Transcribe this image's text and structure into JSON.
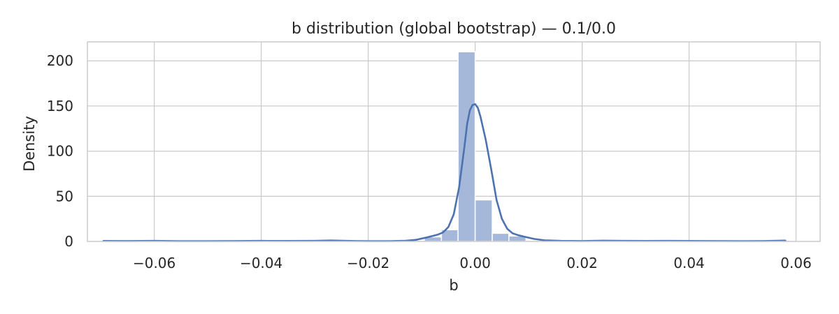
{
  "chart_data": {
    "type": "histogram",
    "title": "b distribution (global bootstrap) — 0.1/0.0",
    "xlabel": "b",
    "ylabel": "Density",
    "xlim": [
      -0.0725,
      0.0645
    ],
    "ylim": [
      0,
      221
    ],
    "xticks": [
      -0.06,
      -0.04,
      -0.02,
      0.0,
      0.02,
      0.04,
      0.06
    ],
    "xtick_labels": [
      "−0.06",
      "−0.04",
      "−0.02",
      "0.00",
      "0.02",
      "0.04",
      "0.06"
    ],
    "yticks": [
      0,
      50,
      100,
      150,
      200
    ],
    "ytick_labels": [
      "0",
      "50",
      "100",
      "150",
      "200"
    ],
    "grid": true,
    "colors": {
      "bar": "#a5b8d9",
      "kde": "#4c72b0",
      "grid": "#cccccc",
      "frame": "#cccccc",
      "text": "#262626"
    },
    "bins": [
      {
        "x0": -0.0095,
        "x1": -0.0063,
        "value": 5
      },
      {
        "x0": -0.0063,
        "x1": -0.0032,
        "value": 13
      },
      {
        "x0": -0.0032,
        "x1": 0.0,
        "value": 210
      },
      {
        "x0": 0.0,
        "x1": 0.0032,
        "value": 46
      },
      {
        "x0": 0.0032,
        "x1": 0.0063,
        "value": 9
      },
      {
        "x0": 0.0063,
        "x1": 0.0095,
        "value": 6
      }
    ],
    "kde": {
      "x": [
        -0.0695,
        -0.065,
        -0.06,
        -0.055,
        -0.05,
        -0.045,
        -0.04,
        -0.035,
        -0.03,
        -0.027,
        -0.024,
        -0.02,
        -0.016,
        -0.013,
        -0.011,
        -0.009,
        -0.008,
        -0.007,
        -0.006,
        -0.005,
        -0.004,
        -0.003,
        -0.002,
        -0.0015,
        -0.001,
        -0.0005,
        0.0,
        0.0005,
        0.001,
        0.0015,
        0.002,
        0.003,
        0.004,
        0.005,
        0.006,
        0.007,
        0.008,
        0.009,
        0.011,
        0.013,
        0.016,
        0.02,
        0.024,
        0.028,
        0.032,
        0.036,
        0.04,
        0.045,
        0.05,
        0.054,
        0.058
      ],
      "y": [
        0.5,
        0.4,
        0.6,
        0.3,
        0.3,
        0.4,
        0.6,
        0.5,
        0.6,
        1.0,
        0.6,
        0.3,
        0.3,
        0.7,
        1.8,
        4.5,
        6.0,
        7.5,
        10.0,
        16.0,
        30.0,
        60.0,
        105.0,
        130.0,
        145.0,
        151.0,
        152.0,
        148.0,
        138.0,
        125.0,
        112.0,
        80.0,
        46.0,
        25.0,
        14.0,
        9.0,
        7.0,
        5.5,
        2.8,
        1.2,
        0.6,
        0.4,
        0.8,
        0.6,
        0.5,
        0.6,
        0.5,
        0.4,
        0.3,
        0.4,
        0.9
      ]
    }
  }
}
